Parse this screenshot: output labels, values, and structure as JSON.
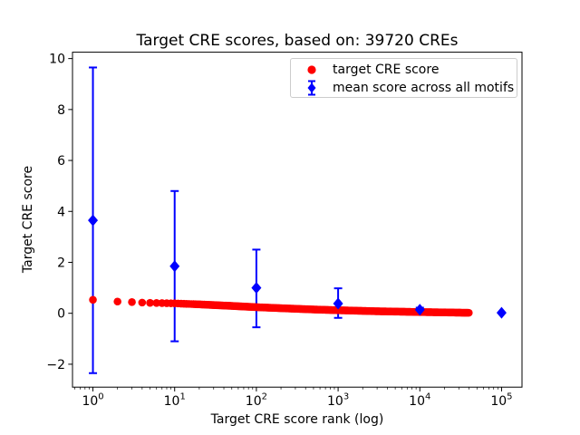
{
  "title": "Target CRE scores, based on: 39720 CREs",
  "x_axis": {
    "label": "Target CRE score rank (log)",
    "scale": "log",
    "ticks": [
      "10^0",
      "10^1",
      "10^2",
      "10^3",
      "10^4",
      "10^5"
    ]
  },
  "y_axis": {
    "label": "Target CRE score",
    "ticks": [
      "−2",
      "0",
      "2",
      "4",
      "6",
      "8",
      "10"
    ]
  },
  "legend": {
    "position": "upper right",
    "items": [
      {
        "label": "target CRE score",
        "marker": "circle",
        "color": "#ff0000"
      },
      {
        "label": "mean score across all motifs",
        "marker": "diamond-errorbar",
        "color": "#0000ff"
      }
    ]
  },
  "colors": {
    "target_series": "#ff0000",
    "mean_series": "#0000ff",
    "frame": "#000000",
    "legend_border": "#cccccc",
    "background": "#ffffff"
  },
  "chart_data": {
    "type": "scatter",
    "title": "Target CRE scores, based on: 39720 CREs",
    "xlabel": "Target CRE score rank (log)",
    "ylabel": "Target CRE score",
    "x_scale": "log",
    "xlim_log10": [
      -0.25,
      5.25
    ],
    "ylim": [
      -2.9,
      10.25
    ],
    "x_ticks_exponents": [
      0,
      1,
      2,
      3,
      4,
      5
    ],
    "y_ticks": [
      -2,
      0,
      2,
      4,
      6,
      8,
      10
    ],
    "grid": false,
    "legend_position": "upper right",
    "series": [
      {
        "name": "target CRE score",
        "type": "scatter",
        "marker": "circle",
        "color": "#ff0000",
        "n_points": 39720,
        "rank_range": [
          1,
          39720
        ],
        "value_samples": [
          [
            1,
            0.53
          ],
          [
            2,
            0.46
          ],
          [
            3,
            0.44
          ],
          [
            4,
            0.42
          ],
          [
            5,
            0.41
          ],
          [
            7,
            0.4
          ],
          [
            10,
            0.39
          ],
          [
            20,
            0.35
          ],
          [
            50,
            0.29
          ],
          [
            100,
            0.24
          ],
          [
            200,
            0.2
          ],
          [
            500,
            0.15
          ],
          [
            1000,
            0.12
          ],
          [
            3000,
            0.08
          ],
          [
            10000,
            0.05
          ],
          [
            39720,
            0.02
          ]
        ]
      },
      {
        "name": "mean score across all motifs",
        "type": "errorbar",
        "marker": "diamond",
        "color": "#0000ff",
        "ranks": [
          1,
          10,
          100,
          1000,
          10000,
          100000
        ],
        "means": [
          3.65,
          1.85,
          1.0,
          0.38,
          0.14,
          0.02
        ],
        "err_low": [
          6.0,
          2.95,
          1.55,
          0.56,
          0.08,
          0
        ],
        "err_high": [
          6.0,
          2.95,
          1.5,
          0.6,
          0.08,
          0
        ]
      }
    ]
  }
}
